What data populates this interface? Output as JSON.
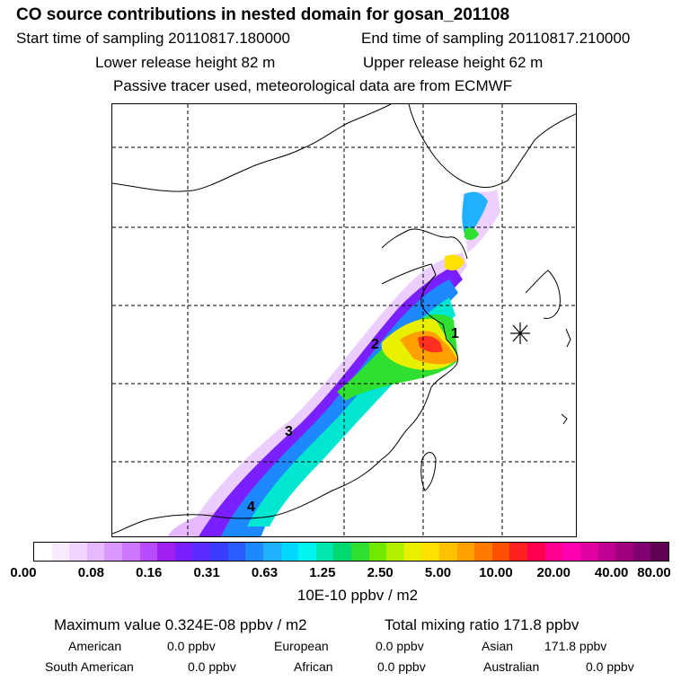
{
  "header": {
    "title": "CO  source contributions in nested domain for gosan_201108",
    "start_label": "Start time of sampling 20110817.180000",
    "end_label": "End time of sampling 20110817.210000",
    "lower_label": "Lower release height   82 m",
    "upper_label": "Upper release height   62 m",
    "note": "Passive tracer used, meteorological data are from ECMWF"
  },
  "map": {
    "receptor_marker": "asterisk-icon",
    "labels": [
      {
        "id": "1",
        "text": "1"
      },
      {
        "id": "2",
        "text": "2"
      },
      {
        "id": "3",
        "text": "3"
      },
      {
        "id": "4",
        "text": "4"
      }
    ]
  },
  "colorbar": {
    "colors": [
      "#ffffff",
      "#f8eaff",
      "#f0d4ff",
      "#e6b8ff",
      "#d999ff",
      "#cc77ff",
      "#b84dff",
      "#a020f0",
      "#7a1fff",
      "#5a2cff",
      "#3c3cff",
      "#2a5cff",
      "#1e88ff",
      "#1fb0ff",
      "#00d8ff",
      "#00f5f0",
      "#00e6b0",
      "#00d870",
      "#30e030",
      "#70e800",
      "#b0f000",
      "#e8f000",
      "#ffe000",
      "#ffc000",
      "#ffa000",
      "#ff7a00",
      "#ff5000",
      "#ff2020",
      "#ff0050",
      "#ff0090",
      "#ff00b0",
      "#e000a0",
      "#c00090",
      "#a00080",
      "#800070",
      "#600050"
    ],
    "ticks": [
      "0.00",
      "0.08",
      "0.16",
      "0.31",
      "0.63",
      "1.25",
      "2.50",
      "5.00",
      "10.00",
      "20.00",
      "40.00",
      "80.00"
    ],
    "unit": "10E-10 ppbv / m2"
  },
  "summary": {
    "max_value": "Maximum value  0.324E-08 ppbv / m2",
    "total_mixing": "Total mixing ratio      171.8 ppbv",
    "contributions": [
      {
        "name": "American",
        "value": "0.0 ppbv"
      },
      {
        "name": "European",
        "value": "0.0 ppbv"
      },
      {
        "name": "Asian",
        "value": "171.8 ppbv"
      },
      {
        "name": "South American",
        "value": "0.0 ppbv"
      },
      {
        "name": "African",
        "value": "0.0 ppbv"
      },
      {
        "name": "Australian",
        "value": "0.0 ppbv"
      }
    ]
  }
}
